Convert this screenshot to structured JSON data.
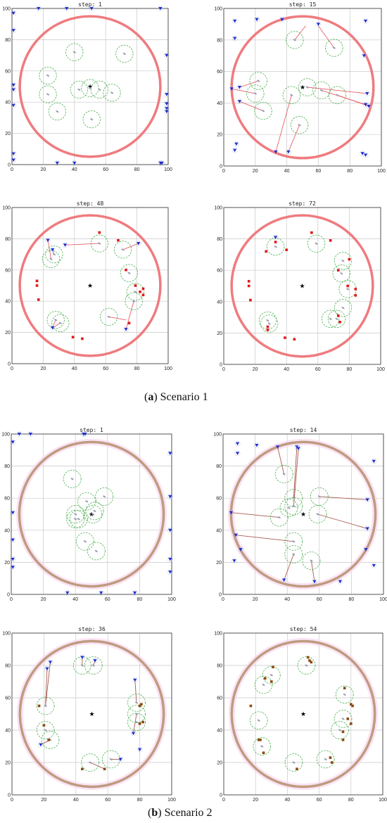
{
  "captions": [
    {
      "letter": "a",
      "text": " Scenario 1"
    },
    {
      "letter": "b",
      "text": " Scenario 2"
    }
  ],
  "chart_data": [
    {
      "type": "scatter",
      "scenario": 1,
      "title": "step: 1",
      "xlim": [
        0,
        100
      ],
      "ylim": [
        0,
        100
      ],
      "xticks": [
        "0",
        "20",
        "40",
        "60",
        "80",
        "100"
      ],
      "yticks": [
        "0",
        "20",
        "40",
        "60",
        "80",
        "100"
      ],
      "grid": true,
      "boundary": {
        "cx": 50,
        "cy": 50,
        "r": 45,
        "color": "#ef7b7f"
      },
      "target": [
        50,
        50
      ],
      "agents": [
        [
          40,
          72
        ],
        [
          72,
          71
        ],
        [
          23,
          57
        ],
        [
          23,
          45
        ],
        [
          29,
          34
        ],
        [
          43,
          48
        ],
        [
          50,
          49
        ],
        [
          56,
          48
        ],
        [
          64,
          46
        ],
        [
          51,
          29
        ]
      ],
      "intruders": [
        [
          1,
          97
        ],
        [
          1,
          86
        ],
        [
          1,
          51
        ],
        [
          1,
          48
        ],
        [
          1,
          38
        ],
        [
          1,
          7
        ],
        [
          1,
          3
        ],
        [
          17,
          100
        ],
        [
          35,
          100
        ],
        [
          51,
          100
        ],
        [
          95,
          100
        ],
        [
          99,
          70
        ],
        [
          99,
          45
        ],
        [
          99,
          39
        ],
        [
          99,
          36
        ],
        [
          99,
          34
        ],
        [
          29,
          1
        ],
        [
          40,
          1
        ],
        [
          95,
          1
        ],
        [
          96,
          1
        ]
      ],
      "captured": [],
      "links": []
    },
    {
      "type": "scatter",
      "scenario": 1,
      "title": "step: 15",
      "xlim": [
        0,
        100
      ],
      "ylim": [
        0,
        100
      ],
      "xticks": [
        "0",
        "20",
        "40",
        "60",
        "80",
        "100"
      ],
      "yticks": [
        "0",
        "20",
        "40",
        "60",
        "80",
        "100"
      ],
      "grid": true,
      "boundary": {
        "cx": 50,
        "cy": 50,
        "r": 45,
        "color": "#ef7b7f"
      },
      "target": [
        50,
        50
      ],
      "agents": [
        [
          45,
          80
        ],
        [
          70,
          75
        ],
        [
          22,
          54
        ],
        [
          20,
          46
        ],
        [
          25,
          35
        ],
        [
          43,
          45
        ],
        [
          53,
          50
        ],
        [
          62,
          48
        ],
        [
          72,
          45
        ],
        [
          48,
          26
        ]
      ],
      "intruders": [
        [
          7,
          92
        ],
        [
          7,
          81
        ],
        [
          21,
          93
        ],
        [
          37,
          93
        ],
        [
          60,
          90
        ],
        [
          90,
          92
        ],
        [
          89,
          70
        ],
        [
          5,
          49
        ],
        [
          10,
          50
        ],
        [
          10,
          41
        ],
        [
          91,
          46
        ],
        [
          90,
          39
        ],
        [
          92,
          38
        ],
        [
          8,
          14
        ],
        [
          7,
          10
        ],
        [
          33,
          9
        ],
        [
          41,
          9
        ],
        [
          88,
          8
        ],
        [
          90,
          7
        ]
      ],
      "captured": [],
      "links": [
        [
          45,
          80,
          52,
          89
        ],
        [
          70,
          75,
          60,
          89
        ],
        [
          22,
          54,
          10,
          50
        ],
        [
          20,
          46,
          5,
          49
        ],
        [
          25,
          35,
          10,
          41
        ],
        [
          43,
          45,
          33,
          9
        ],
        [
          53,
          50,
          91,
          46
        ],
        [
          62,
          48,
          90,
          39
        ],
        [
          72,
          45,
          92,
          38
        ],
        [
          48,
          26,
          41,
          9
        ]
      ]
    },
    {
      "type": "scatter",
      "scenario": 1,
      "title": "step: 48",
      "xlim": [
        0,
        100
      ],
      "ylim": [
        0,
        100
      ],
      "xticks": [
        "0",
        "20",
        "40",
        "60",
        "80",
        "100"
      ],
      "yticks": [
        "0",
        "20",
        "40",
        "60",
        "80",
        "100"
      ],
      "grid": true,
      "boundary": {
        "cx": 50,
        "cy": 50,
        "r": 45,
        "color": "#ef7b7f"
      },
      "target": [
        50,
        50
      ],
      "agents": [
        [
          56,
          77
        ],
        [
          71,
          73
        ],
        [
          25,
          67
        ],
        [
          27,
          70
        ],
        [
          75,
          58
        ],
        [
          79,
          46
        ],
        [
          78,
          40
        ],
        [
          62,
          30
        ],
        [
          28,
          28
        ],
        [
          31,
          26
        ]
      ],
      "intruders": [
        [
          23,
          79
        ],
        [
          26,
          73
        ],
        [
          34,
          76
        ],
        [
          81,
          77
        ],
        [
          73,
          22
        ],
        [
          26,
          23
        ]
      ],
      "captured": [
        [
          56,
          84
        ],
        [
          68,
          79
        ],
        [
          16,
          53
        ],
        [
          16,
          50
        ],
        [
          17,
          41
        ],
        [
          73,
          60
        ],
        [
          79,
          50
        ],
        [
          82,
          46
        ],
        [
          84,
          48
        ],
        [
          84,
          44
        ],
        [
          39,
          17
        ],
        [
          45,
          16
        ],
        [
          75,
          26
        ]
      ],
      "links": [
        [
          56,
          77,
          34,
          76
        ],
        [
          71,
          73,
          81,
          77
        ],
        [
          25,
          67,
          23,
          79
        ],
        [
          27,
          70,
          26,
          73
        ],
        [
          78,
          40,
          73,
          22
        ],
        [
          62,
          30,
          73,
          28
        ],
        [
          28,
          28,
          26,
          23
        ],
        [
          31,
          26,
          26,
          23
        ]
      ]
    },
    {
      "type": "scatter",
      "scenario": 1,
      "title": "step: 72",
      "xlim": [
        0,
        100
      ],
      "ylim": [
        0,
        100
      ],
      "xticks": [
        "0",
        "20",
        "40",
        "60",
        "80",
        "100"
      ],
      "yticks": [
        "0",
        "20",
        "40",
        "60",
        "80",
        "100"
      ],
      "grid": true,
      "boundary": {
        "cx": 50,
        "cy": 50,
        "r": 45,
        "color": "#ef7b7f"
      },
      "target": [
        50,
        50
      ],
      "agents": [
        [
          33,
          75
        ],
        [
          59,
          77
        ],
        [
          76,
          66
        ],
        [
          75,
          58
        ],
        [
          79,
          48
        ],
        [
          76,
          36
        ],
        [
          68,
          29
        ],
        [
          72,
          29
        ],
        [
          28,
          28
        ],
        [
          29,
          26
        ]
      ],
      "intruders": [
        [
          33,
          81
        ]
      ],
      "captured": [
        [
          27,
          72
        ],
        [
          40,
          73
        ],
        [
          33,
          78
        ],
        [
          56,
          84
        ],
        [
          68,
          79
        ],
        [
          16,
          53
        ],
        [
          16,
          50
        ],
        [
          17,
          41
        ],
        [
          73,
          60
        ],
        [
          79,
          50
        ],
        [
          80,
          67
        ],
        [
          84,
          48
        ],
        [
          84,
          44
        ],
        [
          74,
          27
        ],
        [
          73,
          31
        ],
        [
          28,
          24
        ],
        [
          28,
          22
        ],
        [
          39,
          17
        ],
        [
          45,
          16
        ]
      ],
      "links": []
    },
    {
      "type": "scatter",
      "scenario": 2,
      "title": "step: 1",
      "xlim": [
        0,
        100
      ],
      "ylim": [
        0,
        100
      ],
      "xticks": [
        "0",
        "20",
        "40",
        "60",
        "80",
        "100"
      ],
      "yticks": [
        "0",
        "20",
        "40",
        "60",
        "80",
        "100"
      ],
      "grid": true,
      "boundary": {
        "cx": 50,
        "cy": 50,
        "r": 45,
        "color": "#bf9b80"
      },
      "target": [
        50,
        50
      ],
      "agents": [
        [
          38,
          72
        ],
        [
          47,
          58
        ],
        [
          58,
          61
        ],
        [
          40,
          50
        ],
        [
          42,
          47
        ],
        [
          51,
          50
        ],
        [
          46,
          33
        ],
        [
          53,
          27
        ],
        [
          40,
          47
        ],
        [
          52,
          52
        ]
      ],
      "intruders": [
        [
          1,
          95
        ],
        [
          1,
          51
        ],
        [
          1,
          34
        ],
        [
          1,
          22
        ],
        [
          1,
          17
        ],
        [
          5,
          100
        ],
        [
          12,
          100
        ],
        [
          45,
          100
        ],
        [
          46,
          100
        ],
        [
          99,
          88
        ],
        [
          99,
          61
        ],
        [
          99,
          40
        ],
        [
          99,
          22
        ],
        [
          99,
          14
        ],
        [
          35,
          1
        ],
        [
          56,
          1
        ],
        [
          77,
          1
        ]
      ],
      "captured": [],
      "links": []
    },
    {
      "type": "scatter",
      "scenario": 2,
      "title": "step: 14",
      "xlim": [
        0,
        100
      ],
      "ylim": [
        0,
        100
      ],
      "xticks": [
        "0",
        "20",
        "40",
        "60",
        "80",
        "100"
      ],
      "yticks": [
        "0",
        "20",
        "40",
        "60",
        "80",
        "100"
      ],
      "grid": true,
      "boundary": {
        "cx": 50,
        "cy": 50,
        "r": 45,
        "color": "#bf9b80"
      },
      "target": [
        50,
        50
      ],
      "agents": [
        [
          38,
          75
        ],
        [
          44,
          60
        ],
        [
          41,
          54
        ],
        [
          35,
          48
        ],
        [
          60,
          61
        ],
        [
          59,
          50
        ],
        [
          44,
          33
        ],
        [
          44,
          25
        ],
        [
          55,
          21
        ],
        [
          44,
          55
        ]
      ],
      "intruders": [
        [
          9,
          94
        ],
        [
          9,
          88
        ],
        [
          21,
          93
        ],
        [
          34,
          92
        ],
        [
          46,
          92
        ],
        [
          47,
          91
        ],
        [
          94,
          83
        ],
        [
          5,
          51
        ],
        [
          90,
          59
        ],
        [
          90,
          41
        ],
        [
          8,
          37
        ],
        [
          11,
          28
        ],
        [
          89,
          28
        ],
        [
          94,
          18
        ],
        [
          7,
          21
        ],
        [
          38,
          9
        ],
        [
          57,
          8
        ],
        [
          73,
          8
        ]
      ],
      "captured": [],
      "links": [
        [
          38,
          75,
          34,
          92
        ],
        [
          44,
          60,
          46,
          92
        ],
        [
          44,
          55,
          47,
          91
        ],
        [
          35,
          48,
          5,
          51
        ],
        [
          60,
          61,
          90,
          59
        ],
        [
          59,
          50,
          90,
          41
        ],
        [
          44,
          33,
          8,
          37
        ],
        [
          44,
          25,
          38,
          9
        ],
        [
          55,
          21,
          57,
          8
        ]
      ]
    },
    {
      "type": "scatter",
      "scenario": 2,
      "title": "step: 36",
      "xlim": [
        0,
        100
      ],
      "ylim": [
        0,
        100
      ],
      "xticks": [
        "0",
        "20",
        "40",
        "60",
        "80",
        "100"
      ],
      "yticks": [
        "0",
        "20",
        "40",
        "60",
        "80",
        "100"
      ],
      "grid": true,
      "boundary": {
        "cx": 50,
        "cy": 50,
        "r": 45,
        "color": "#bf9b80"
      },
      "target": [
        50,
        50
      ],
      "agents": [
        [
          21,
          55
        ],
        [
          21,
          40
        ],
        [
          24,
          34
        ],
        [
          44,
          80
        ],
        [
          51,
          80
        ],
        [
          78,
          57
        ],
        [
          78,
          50
        ],
        [
          78,
          45
        ],
        [
          49,
          20
        ],
        [
          62,
          22
        ]
      ],
      "intruders": [
        [
          22,
          78
        ],
        [
          24,
          82
        ],
        [
          44,
          85
        ],
        [
          52,
          83
        ],
        [
          77,
          71
        ],
        [
          76,
          38
        ],
        [
          80,
          28
        ],
        [
          18,
          31
        ],
        [
          68,
          22
        ]
      ],
      "captured": [
        [
          17,
          55
        ],
        [
          20,
          43
        ],
        [
          23,
          34
        ],
        [
          80,
          55
        ],
        [
          81,
          56
        ],
        [
          80,
          44
        ],
        [
          82,
          45
        ],
        [
          44,
          16
        ],
        [
          58,
          16
        ]
      ],
      "links": [
        [
          21,
          55,
          22,
          78
        ],
        [
          21,
          55,
          24,
          82
        ],
        [
          24,
          34,
          18,
          31
        ],
        [
          44,
          80,
          44,
          85
        ],
        [
          51,
          80,
          52,
          83
        ],
        [
          78,
          57,
          77,
          71
        ],
        [
          78,
          50,
          76,
          38
        ],
        [
          49,
          20,
          58,
          16
        ],
        [
          62,
          22,
          68,
          22
        ]
      ]
    },
    {
      "type": "scatter",
      "scenario": 2,
      "title": "step: 54",
      "xlim": [
        0,
        100
      ],
      "ylim": [
        0,
        100
      ],
      "xticks": [
        "0",
        "20",
        "40",
        "60",
        "80",
        "100"
      ],
      "yticks": [
        "0",
        "20",
        "40",
        "60",
        "80",
        "100"
      ],
      "grid": true,
      "boundary": {
        "cx": 50,
        "cy": 50,
        "r": 45,
        "color": "#bf9b80"
      },
      "target": [
        50,
        50
      ],
      "agents": [
        [
          25,
          68
        ],
        [
          30,
          74
        ],
        [
          22,
          46
        ],
        [
          24,
          30
        ],
        [
          44,
          20
        ],
        [
          52,
          80
        ],
        [
          76,
          62
        ],
        [
          75,
          47
        ],
        [
          73,
          40
        ],
        [
          64,
          22
        ]
      ],
      "intruders": [],
      "captured": [
        [
          17,
          55
        ],
        [
          22,
          34
        ],
        [
          23,
          34
        ],
        [
          25,
          26
        ],
        [
          26,
          72
        ],
        [
          31,
          79
        ],
        [
          30,
          70
        ],
        [
          46,
          16
        ],
        [
          53,
          85
        ],
        [
          54,
          83
        ],
        [
          55,
          82
        ],
        [
          76,
          66
        ],
        [
          80,
          56
        ],
        [
          81,
          55
        ],
        [
          80,
          44
        ],
        [
          78,
          47
        ],
        [
          75,
          39
        ],
        [
          75,
          34
        ],
        [
          67,
          23
        ],
        [
          68,
          20
        ]
      ],
      "links": []
    }
  ]
}
